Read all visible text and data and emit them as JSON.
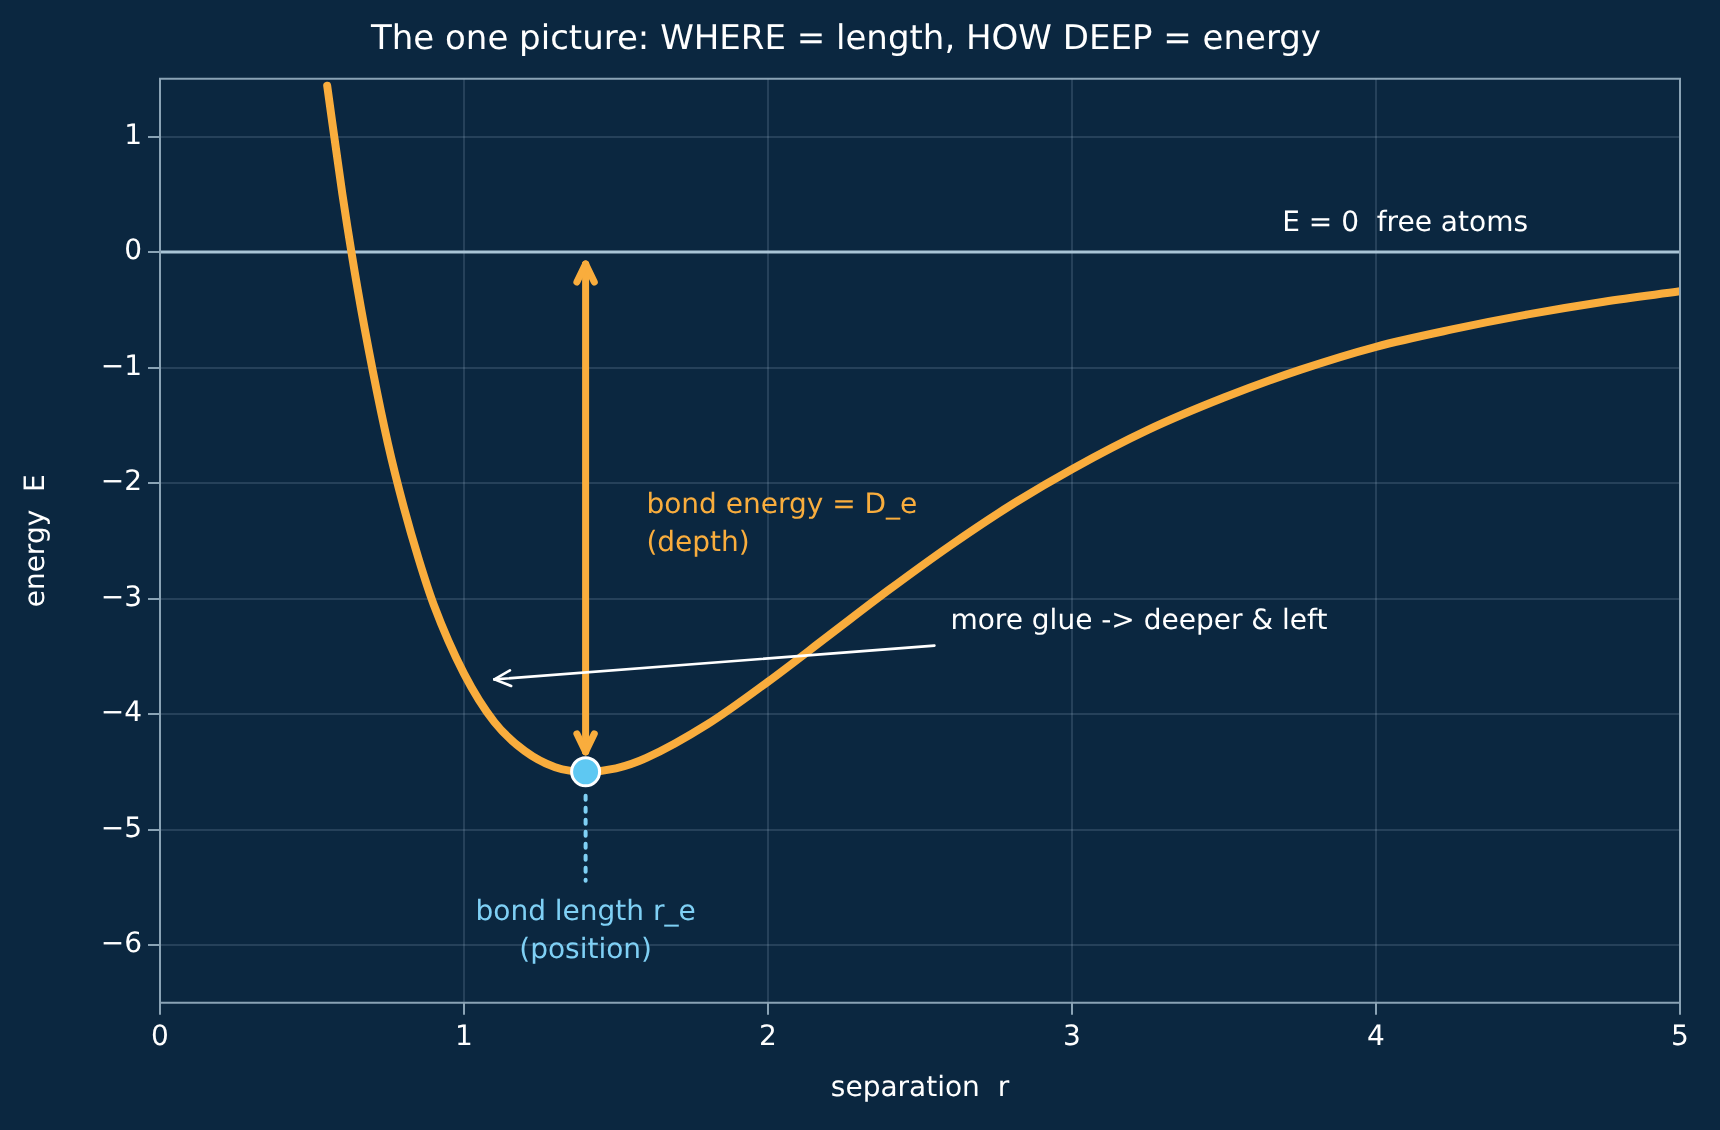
{
  "chart_data": {
    "type": "line",
    "title": "The one picture: WHERE = length, HOW DEEP = energy",
    "xlabel": "separation  r",
    "ylabel": "energy  E",
    "x": [
      0.55,
      0.6,
      0.65,
      0.7,
      0.75,
      0.8,
      0.85,
      0.9,
      1.0,
      1.1,
      1.2,
      1.3,
      1.4,
      1.5,
      1.6,
      1.8,
      2.0,
      2.2,
      2.4,
      2.6,
      2.8,
      3.0,
      3.25,
      3.5,
      3.75,
      4.0,
      4.25,
      4.5,
      4.75,
      5.0
    ],
    "series": [
      {
        "color": "#f9ad3d",
        "values": [
          1.44,
          0.5,
          -0.32,
          -1.03,
          -1.66,
          -2.19,
          -2.65,
          -3.05,
          -3.65,
          -4.07,
          -4.32,
          -4.46,
          -4.5,
          -4.47,
          -4.38,
          -4.09,
          -3.72,
          -3.32,
          -2.92,
          -2.54,
          -2.19,
          -1.88,
          -1.54,
          -1.26,
          -1.02,
          -0.82,
          -0.67,
          -0.54,
          -0.43,
          -0.34
        ]
      },
      {
        "type": "scatter",
        "color": "#5ec8f2",
        "x": [
          1.4
        ],
        "values": [
          -4.5
        ]
      }
    ],
    "xlim": [
      0,
      5
    ],
    "xticks": [
      0,
      1,
      2,
      3,
      4,
      5
    ],
    "ylim": [
      -6.5,
      1.5
    ],
    "yticks": [
      -6,
      -5,
      -4,
      -3,
      -2,
      -1,
      0,
      1
    ],
    "grid": true,
    "legend": false,
    "line_style": "solid",
    "ref_lines": [
      {
        "axis": "y",
        "value": 0,
        "label": "E = 0  free atoms",
        "color": "#a9c4d6"
      }
    ],
    "annotations": [
      "bond energy = D_e\n(depth)",
      "bond length r_e\n(position)",
      "more glue -> deeper & left"
    ]
  }
}
